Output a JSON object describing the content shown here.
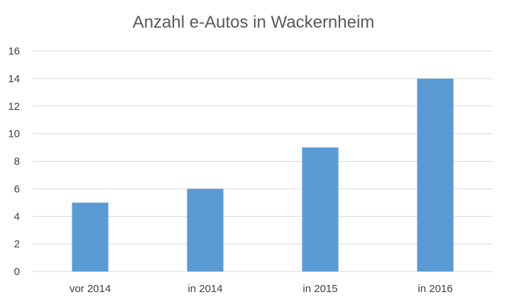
{
  "chart_data": {
    "type": "bar",
    "title": "Anzahl e-Autos in Wackernheim",
    "categories": [
      "vor 2014",
      "in 2014",
      "in 2015",
      "in 2016"
    ],
    "values": [
      5,
      6,
      9,
      14
    ],
    "xlabel": "",
    "ylabel": "",
    "ylim": [
      0,
      16
    ],
    "yticks": [
      0,
      2,
      4,
      6,
      8,
      10,
      12,
      14,
      16
    ],
    "grid": true,
    "legend": "none",
    "bar_color": "#5b9bd5"
  }
}
